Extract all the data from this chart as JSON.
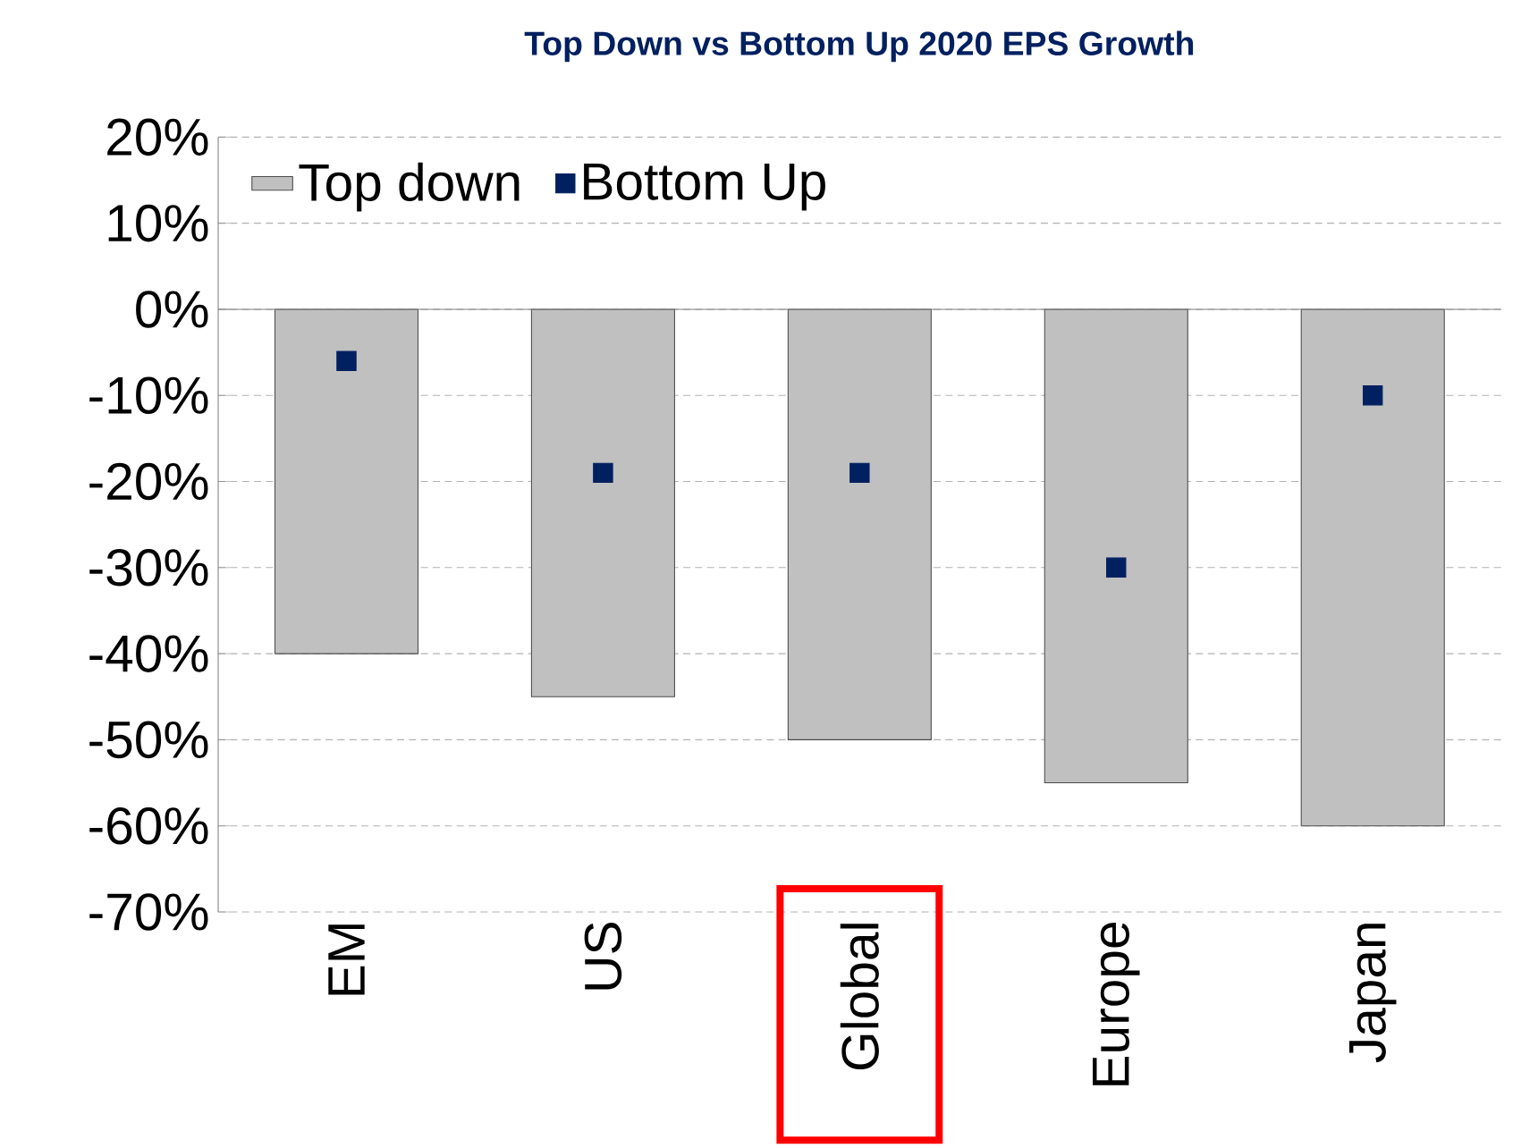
{
  "chart_data": {
    "type": "bar",
    "title": "Top Down vs Bottom Up 2020 EPS Growth",
    "categories": [
      "EM",
      "US",
      "Global",
      "Europe",
      "Japan"
    ],
    "series": [
      {
        "name": "Top down",
        "type": "bar",
        "color": "#c0c0c0",
        "values": [
          -40,
          -45,
          -50,
          -55,
          -60
        ]
      },
      {
        "name": "Bottom Up",
        "type": "scatter",
        "color": "#002060",
        "marker": "square",
        "x": [
          "EM",
          "US",
          "Global",
          "Europe",
          "Japan"
        ],
        "values": [
          -6,
          -19,
          -19,
          -30,
          -10
        ]
      }
    ],
    "ylim": [
      -70,
      20
    ],
    "yticks": [
      {
        "value": 20,
        "label": "20%"
      },
      {
        "value": 10,
        "label": "10%"
      },
      {
        "value": 0,
        "label": "0%"
      },
      {
        "value": -10,
        "label": "-10%"
      },
      {
        "value": -20,
        "label": "-20%"
      },
      {
        "value": -30,
        "label": "-30%"
      },
      {
        "value": -40,
        "label": "-40%"
      },
      {
        "value": -50,
        "label": "-50%"
      },
      {
        "value": -60,
        "label": "-60%"
      },
      {
        "value": -70,
        "label": "-70%"
      }
    ],
    "grid": "y",
    "legend": "top left"
  }
}
